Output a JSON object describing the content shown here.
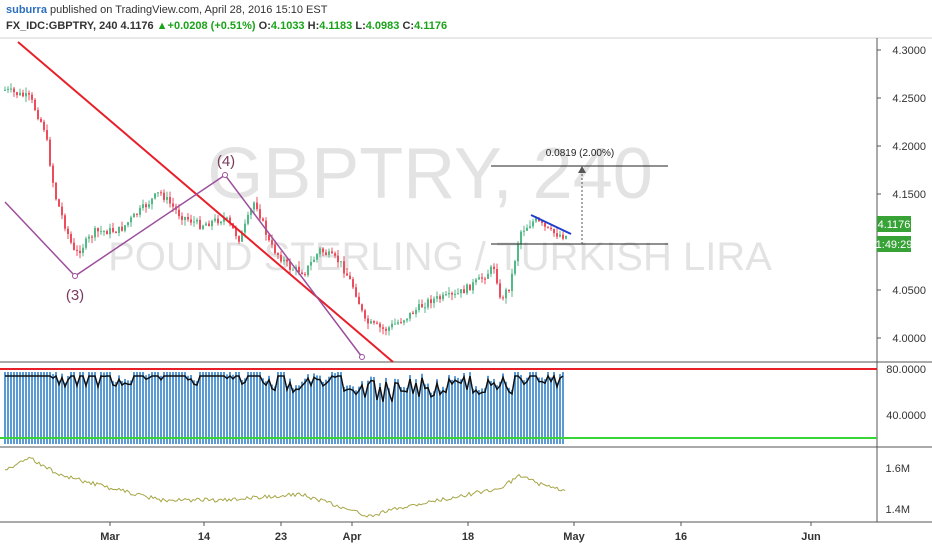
{
  "header": {
    "author": "suburra",
    "published": "published on TradingView.com, April 28, 2016 15:10 EST",
    "symbol": "FX_IDC:GBPTRY, 240",
    "last": "4.1176",
    "change": "+0.0208 (+0.51%)",
    "open_label": "O:",
    "open": "4.1033",
    "high_label": "H:",
    "high": "4.1183",
    "low_label": "L:",
    "low": "4.0983",
    "close_label": "C:",
    "close": "4.1176"
  },
  "watermark": {
    "symbol": "GBPTRY, 240",
    "name": "POUND STERLING / TURKISH LIRA"
  },
  "price_axis": {
    "ticks": [
      "4.3000",
      "4.2500",
      "4.2000",
      "4.1500",
      "4.0500",
      "4.0000"
    ],
    "current_price": "4.1176",
    "countdown": "1:49:29",
    "current_color": "#37a236"
  },
  "measure": {
    "label": "0.0819 (2.00%)"
  },
  "waves": {
    "w3": "(3)",
    "w4": "(4)"
  },
  "rsi_axis": {
    "ticks": [
      "80.0000",
      "40.0000"
    ],
    "upper_color": "#e8202a",
    "lower_color": "#38d438"
  },
  "vol_axis": {
    "ticks": [
      "1.6M",
      "1.4M"
    ]
  },
  "time_axis": {
    "ticks": [
      "Mar",
      "14",
      "23",
      "Apr",
      "18",
      "May",
      "16",
      "Jun"
    ]
  },
  "colors": {
    "up": "#53b987",
    "down": "#eb4d5c",
    "trend": "#e8202a",
    "wave": "#9c4f9c",
    "blue_line": "#1f3fd0",
    "rsi_bar": "#5b9bd5",
    "obv": "#a6a647"
  }
}
